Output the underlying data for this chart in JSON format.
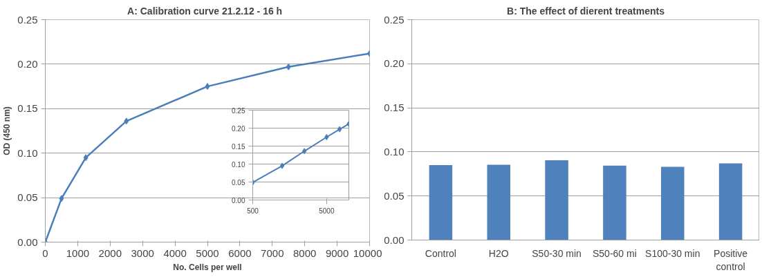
{
  "chart_data": [
    {
      "type": "line",
      "title": "A: Calibration curve  21.2.12  - 16 h",
      "xlabel": "No. Cells per well",
      "ylabel": "OD (450 nm)",
      "x": [
        0,
        500,
        1250,
        2500,
        5000,
        7500,
        10000
      ],
      "series": [
        {
          "color": "#4a7ebb",
          "values": [
            0,
            0.049,
            0.095,
            0.136,
            0.175,
            0.197,
            0.212
          ]
        }
      ],
      "xlim": [
        0,
        10000
      ],
      "xticks": [
        0,
        1000,
        2000,
        3000,
        4000,
        5000,
        6000,
        7000,
        8000,
        9000,
        10000
      ],
      "ylim": [
        0,
        0.25
      ],
      "yticks": [
        {
          "value": 0,
          "label": "0.00"
        },
        0.05,
        {
          "value": 0.1,
          "label": "0.10"
        },
        0.15,
        {
          "value": 0.2,
          "label": "0.20"
        },
        0.25
      ],
      "grid": "y",
      "marker": "diamond",
      "line_style": "solid"
    },
    {
      "type": "line",
      "x": [
        500,
        1250,
        2500,
        5000,
        7500,
        10000
      ],
      "series": [
        {
          "color": "#4a7ebb",
          "values": [
            0.049,
            0.095,
            0.136,
            0.175,
            0.197,
            0.212
          ]
        }
      ],
      "log": "x",
      "xlim": [
        500,
        10000
      ],
      "xticks": [
        500,
        5000
      ],
      "ylim": [
        0,
        0.25
      ],
      "yticks": [
        {
          "value": 0,
          "label": "0.00"
        },
        0.05,
        {
          "value": 0.1,
          "label": "0.10"
        },
        0.15,
        {
          "value": 0.2,
          "label": "0.20"
        },
        0.25
      ],
      "grid": "y",
      "marker": "diamond",
      "line_style": "solid"
    },
    {
      "type": "bar",
      "title": "B: The effect of dierent treatments",
      "categories": [
        "Control",
        "H2O",
        "S50-30 min",
        "S50-60 mi",
        "S100-30 min",
        "Positive control"
      ],
      "series": [
        {
          "color": "#4f81bd",
          "values": [
            0.085,
            0.0855,
            0.0905,
            0.0845,
            0.083,
            0.087
          ]
        }
      ],
      "ylim": [
        0,
        0.25
      ],
      "yticks": [
        {
          "value": 0,
          "label": "0.00"
        },
        0.05,
        {
          "value": 0.1,
          "label": "0.10"
        },
        0.15,
        {
          "value": 0.2,
          "label": "0.20"
        },
        0.25
      ],
      "grid": "y"
    }
  ]
}
